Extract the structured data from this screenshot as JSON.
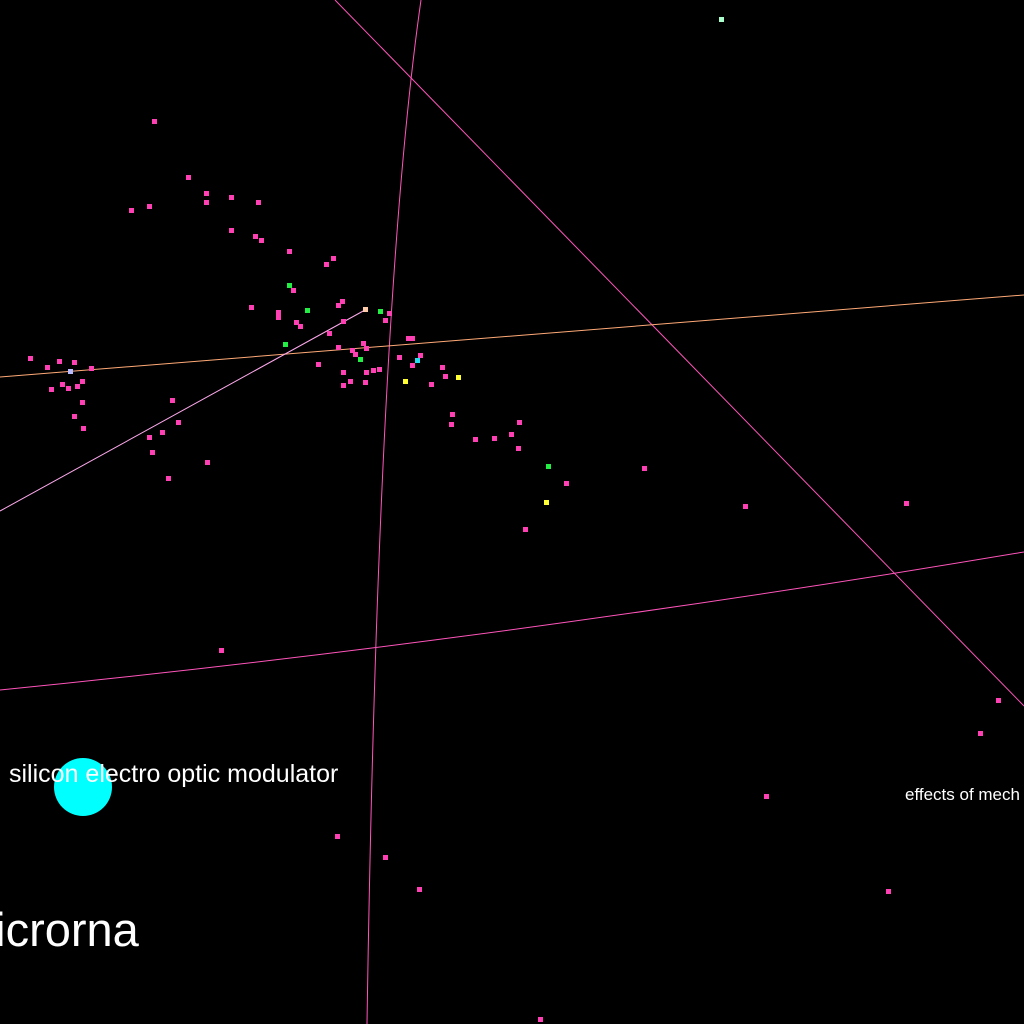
{
  "labels": {
    "modulator": "silicon electro optic modulator",
    "mechanics": "effects of mech",
    "micrornas": "microrna"
  },
  "colors": {
    "background": "#000000",
    "node_default": "#ff3fb4",
    "node_green": "#22ee44",
    "node_yellow": "#ffff33",
    "node_cyan": "#22ddee",
    "node_lavender": "#bbbbff",
    "node_mint": "#aaffcc",
    "node_peach": "#ffccaa",
    "big_node": "#00ffff",
    "edge_pink": "#ff55bb",
    "edge_orange": "#ffaa77",
    "text": "#ffffff"
  },
  "icons": [
    "graph-node-dot",
    "graph-edge-line",
    "highlighted-node-circle"
  ]
}
